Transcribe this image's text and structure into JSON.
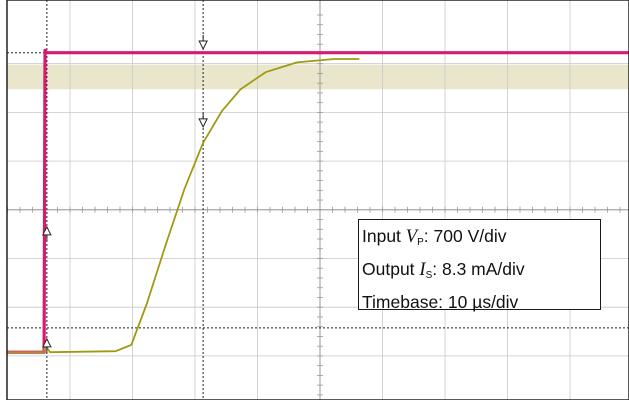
{
  "chart_data": {
    "type": "line",
    "title": "",
    "grid": true,
    "x_divisions": 10,
    "y_divisions": 8,
    "x_range_us": [
      -6.3,
      93.7
    ],
    "series": [
      {
        "color": "#d81b72",
        "points_us_div": [
          [
            -6.3,
            0.0
          ],
          [
            -0.45,
            0.0
          ],
          [
            -0.3,
            6.2
          ],
          [
            0.0,
            6.15
          ],
          [
            93.7,
            6.15
          ]
        ]
      },
      {
        "color": "#a09a12",
        "points_us_div": [
          [
            -6.3,
            0.0
          ],
          [
            -0.5,
            0.0
          ],
          [
            -0.3,
            0.15
          ],
          [
            0.5,
            0.0
          ],
          [
            11.0,
            0.02
          ],
          [
            13.5,
            0.15
          ],
          [
            16.0,
            1.0
          ],
          [
            19.0,
            2.2
          ],
          [
            22.0,
            3.35
          ],
          [
            25.0,
            4.3
          ],
          [
            28.0,
            4.95
          ],
          [
            31.0,
            5.4
          ],
          [
            35.0,
            5.75
          ],
          [
            40.0,
            5.95
          ],
          [
            46.0,
            6.02
          ],
          [
            50.0,
            6.02
          ]
        ]
      }
    ],
    "reference_band_div": [
      5.4,
      5.9
    ],
    "cursors_us": [
      0.0,
      25.0
    ],
    "cursor_lines_div": [
      6.15,
      0.5
    ]
  },
  "annotations": {
    "line1_prefix": "Input ",
    "line1_symbol": "V",
    "line1_sub": "P",
    "line1_suffix": ": 700 V/div",
    "line2_prefix": "Output ",
    "line2_symbol": "I",
    "line2_sub": "S",
    "line2_suffix": ": 8.3 mA/div",
    "line3": "Timebase: 10 µs/div"
  },
  "colors": {
    "input_trace": "#d81b72",
    "output_trace": "#a09a12",
    "band": "#e9e6cc",
    "grid": "#c8c8c8",
    "frame": "#222222"
  }
}
